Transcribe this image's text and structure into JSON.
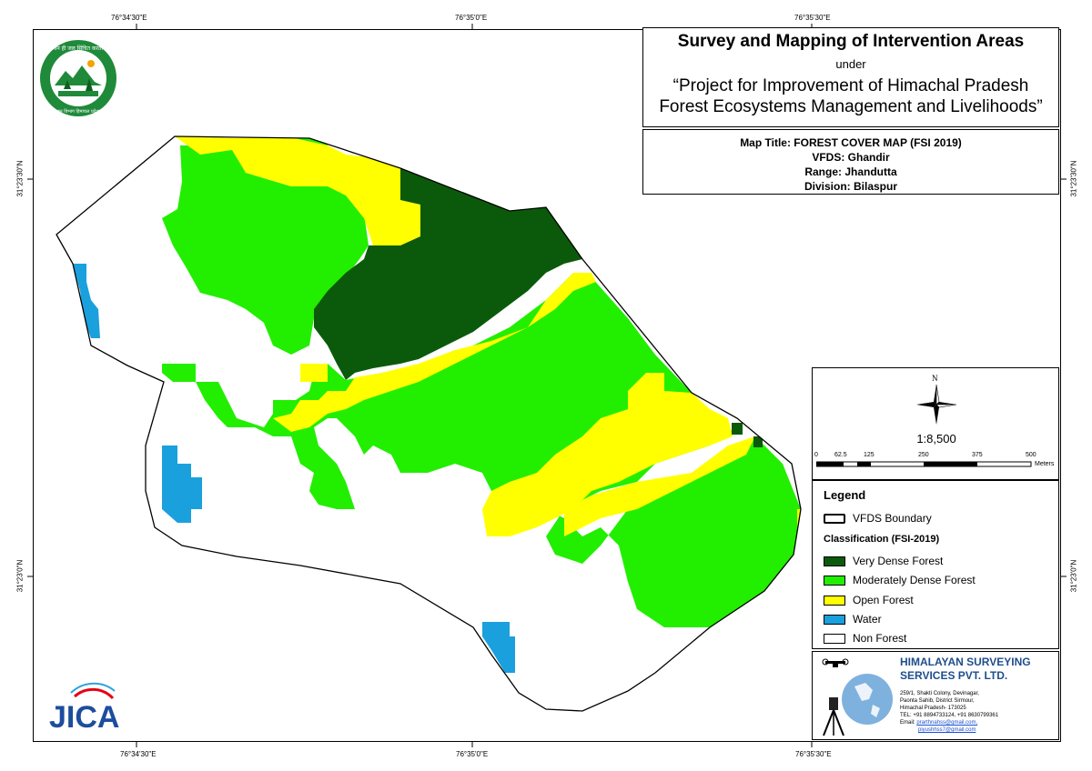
{
  "title": {
    "line1": "Survey and Mapping of Intervention Areas",
    "line2": "under",
    "line3": "“Project for Improvement of Himachal Pradesh",
    "line4": "Forest Ecosystems Management and Livelihoods”"
  },
  "map_info": {
    "map_title": "Map Title: FOREST COVER MAP (FSI 2019)",
    "vfds": "VFDS: Ghandir",
    "range": "Range: Jhandutta",
    "division": "Division: Bilaspur"
  },
  "coordinates": {
    "top": [
      "76°34'30\"E",
      "76°35'0\"E",
      "76°35'30\"E"
    ],
    "bottom": [
      "76°34'30\"E",
      "76°35'0\"E",
      "76°35'30\"E"
    ],
    "left": [
      "31°23'30\"N",
      "31°23'0\"N"
    ],
    "right": [
      "31°23'30\"N",
      "31°23'0\"N"
    ]
  },
  "north_arrow": {
    "label": "N",
    "icon": "compass-rose-icon"
  },
  "scale": {
    "ratio": "1:8,500",
    "ticks": [
      "0",
      "62.5",
      "125",
      "250",
      "375",
      "500"
    ],
    "unit": "Meters"
  },
  "legend": {
    "title": "Legend",
    "boundary_label": "VFDS Boundary",
    "classification_title": "Classification (FSI-2019)",
    "classes": [
      {
        "label": "Very Dense Forest",
        "color": "#0b5a0b"
      },
      {
        "label": "Moderately Dense Forest",
        "color": "#22ee00"
      },
      {
        "label": "Open Forest",
        "color": "#ffff00"
      },
      {
        "label": "Water",
        "color": "#1aa0dd"
      },
      {
        "label": "Non Forest",
        "color": "#ffffff"
      }
    ]
  },
  "company": {
    "name1": "HIMALAYAN SURVEYING",
    "name2": "SERVICES PVT. LTD.",
    "addr1": "259/1, Shakti Colony, Devinagar,",
    "addr2": "Paonta Sahib, District Sirmour,",
    "addr3": "Himachal Pradesh- 173025",
    "tel": "TEL: +91 8894733124, +91 8630799361",
    "email_label": "Email:",
    "email1": "prarthnahss@gmail.com,",
    "email2": "piyushhss7@gmail.com"
  },
  "logos": {
    "forest_dept_text_top": "वन ही जल सिंचित करता",
    "forest_dept_text_bottom": "वन विभाग हिमाचल प्रदेश",
    "jica": "JICA"
  }
}
